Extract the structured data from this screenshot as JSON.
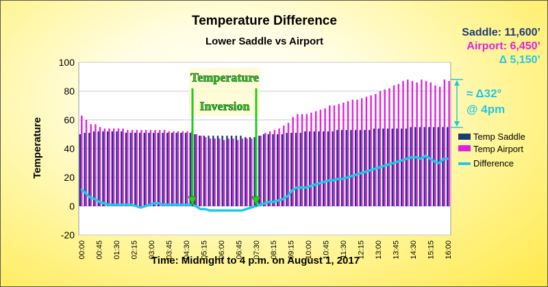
{
  "chart_data": {
    "type": "bar",
    "title": "Temperature Difference",
    "subtitle": "Lower Saddle vs Airport",
    "xlabel": "Time: Midnight to 4 p.m.  on August 1, 2017",
    "ylabel": "Temperature",
    "ylim": [
      -20,
      100
    ],
    "yticks": [
      "-20",
      "0",
      "20",
      "40",
      "60",
      "80",
      "100"
    ],
    "xtick_labels": [
      "00:00",
      "00:45",
      "01:30",
      "02:15",
      "03:00",
      "03:45",
      "04:30",
      "05:15",
      "06:00",
      "06:45",
      "07:30",
      "08:15",
      "09:15",
      "10:00",
      "10:45",
      "11:30",
      "12:15",
      "13:00",
      "13:45",
      "14:30",
      "15:15",
      "16:00"
    ],
    "series": [
      {
        "name": "Temp Saddle",
        "type": "bar",
        "color": "#1a3a7a",
        "values": [
          50,
          51,
          51,
          52,
          52,
          52,
          52,
          52,
          52,
          52,
          51,
          51,
          51,
          51,
          51,
          51,
          51,
          51,
          51,
          51,
          51,
          51,
          51,
          51,
          51,
          50,
          49,
          49,
          49,
          49,
          49,
          49,
          49,
          49,
          49,
          49,
          48,
          48,
          48,
          49,
          50,
          50,
          50,
          50,
          50,
          51,
          51,
          51,
          51,
          52,
          52,
          52,
          52,
          52,
          52,
          52,
          53,
          53,
          53,
          53,
          53,
          53,
          53,
          53,
          54,
          54,
          54,
          54,
          54,
          54,
          54,
          54,
          55,
          55,
          55,
          55,
          55,
          55,
          55,
          55,
          55
        ]
      },
      {
        "name": "Temp Airport",
        "type": "bar",
        "color": "#e020e0",
        "values": [
          63,
          60,
          57,
          57,
          55,
          54,
          54,
          54,
          54,
          54,
          53,
          53,
          53,
          53,
          53,
          53,
          53,
          53,
          53,
          52,
          52,
          52,
          52,
          52,
          52,
          50,
          49,
          48,
          47,
          47,
          47,
          46,
          47,
          47,
          46,
          47,
          47,
          47,
          47,
          49,
          51,
          52,
          53,
          54,
          56,
          58,
          62,
          64,
          64,
          64,
          65,
          66,
          67,
          68,
          70,
          70,
          71,
          72,
          73,
          74,
          74,
          75,
          76,
          77,
          78,
          80,
          81,
          82,
          84,
          85,
          87,
          88,
          87,
          86,
          88,
          87,
          86,
          84,
          83,
          88,
          87
        ]
      },
      {
        "name": "Difference",
        "type": "line",
        "color": "#20c8e8",
        "values": [
          12,
          9,
          6,
          5,
          3,
          2,
          1,
          1,
          1,
          1,
          1,
          1,
          0,
          -1,
          0,
          1,
          2,
          2,
          1,
          1,
          1,
          1,
          1,
          1,
          1,
          0,
          -2,
          -2,
          -3,
          -3,
          -3,
          -3,
          -3,
          -3,
          -3,
          -3,
          -2,
          -1,
          0,
          1,
          2,
          3,
          3,
          4,
          5,
          7,
          11,
          13,
          13,
          13,
          14,
          15,
          16,
          17,
          18,
          18,
          19,
          19,
          20,
          21,
          22,
          23,
          24,
          25,
          26,
          27,
          28,
          29,
          30,
          31,
          32,
          33,
          34,
          34,
          33,
          35,
          33,
          31,
          30,
          33,
          33
        ]
      }
    ],
    "legend": [
      "Temp Saddle",
      "Temp Airport",
      "Difference"
    ],
    "legend_position": "right",
    "annotations": {
      "inversion_line1": "Temperature",
      "inversion_line2": "Inversion",
      "diff_line1": "≈ Δ32°",
      "diff_line2": "@ 4pm"
    }
  },
  "info": {
    "saddle": "Saddle: 11,600’",
    "airport": "Airport: 6,450’",
    "delta": "Δ 5,150’"
  },
  "colors": {
    "saddle": "#1a3a7a",
    "airport": "#e020e0",
    "difference": "#20c8e8",
    "arrow_green": "#22cc22"
  }
}
